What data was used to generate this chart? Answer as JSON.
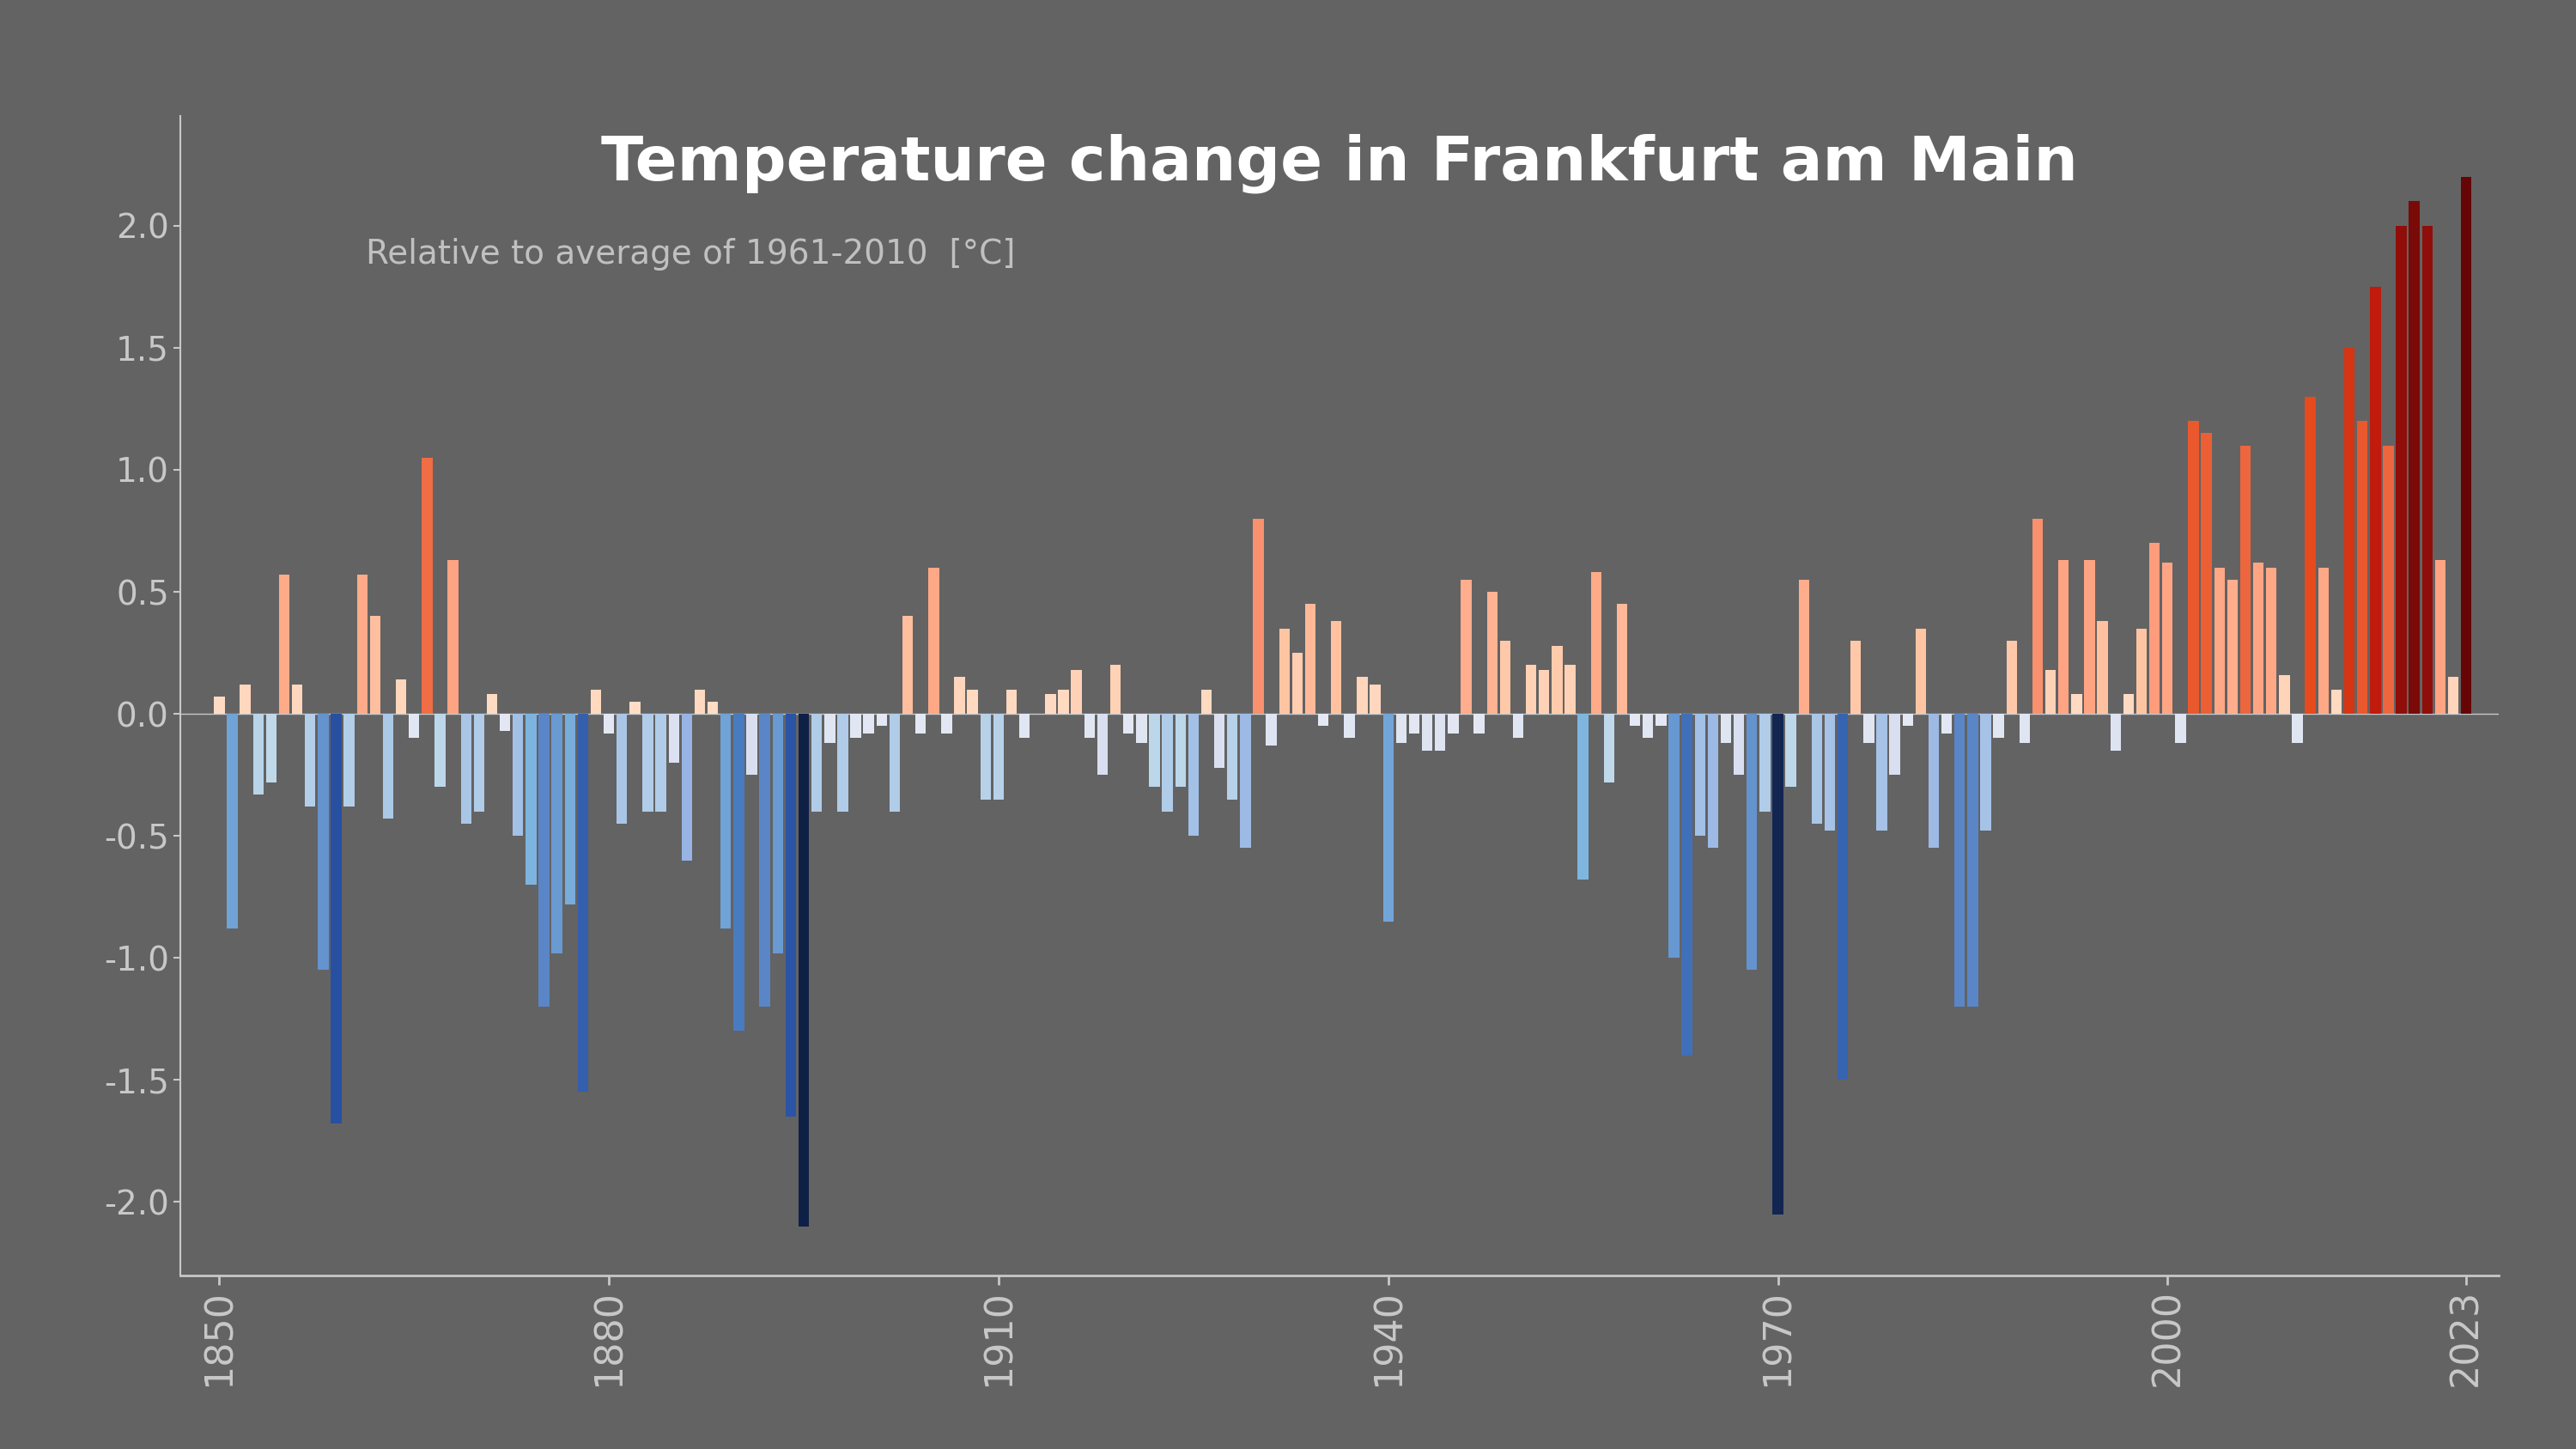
{
  "title": "Temperature change in Frankfurt am Main",
  "subtitle": "Relative to average of 1961-2010  [°C]",
  "background_color": "#636363",
  "axis_color": "#c8c8c8",
  "title_color": "#ffffff",
  "subtitle_color": "#c0c0c0",
  "ylim": [
    -2.3,
    2.45
  ],
  "yticks": [
    -2.0,
    -1.5,
    -1.0,
    -0.5,
    0.0,
    0.5,
    1.0,
    1.5,
    2.0
  ],
  "xtick_years": [
    1850,
    1880,
    1910,
    1940,
    1970,
    2000,
    2023
  ],
  "years": [
    1850,
    1851,
    1852,
    1853,
    1854,
    1855,
    1856,
    1857,
    1858,
    1859,
    1860,
    1861,
    1862,
    1863,
    1864,
    1865,
    1866,
    1867,
    1868,
    1869,
    1870,
    1871,
    1872,
    1873,
    1874,
    1875,
    1876,
    1877,
    1878,
    1879,
    1880,
    1881,
    1882,
    1883,
    1884,
    1885,
    1886,
    1887,
    1888,
    1889,
    1890,
    1891,
    1892,
    1893,
    1894,
    1895,
    1896,
    1897,
    1898,
    1899,
    1900,
    1901,
    1902,
    1903,
    1904,
    1905,
    1906,
    1907,
    1908,
    1909,
    1910,
    1911,
    1912,
    1913,
    1914,
    1915,
    1916,
    1917,
    1918,
    1919,
    1920,
    1921,
    1922,
    1923,
    1924,
    1925,
    1926,
    1927,
    1928,
    1929,
    1930,
    1931,
    1932,
    1933,
    1934,
    1935,
    1936,
    1937,
    1938,
    1939,
    1940,
    1941,
    1942,
    1943,
    1944,
    1945,
    1946,
    1947,
    1948,
    1949,
    1950,
    1951,
    1952,
    1953,
    1954,
    1955,
    1956,
    1957,
    1958,
    1959,
    1960,
    1961,
    1962,
    1963,
    1964,
    1965,
    1966,
    1967,
    1968,
    1969,
    1970,
    1971,
    1972,
    1973,
    1974,
    1975,
    1976,
    1977,
    1978,
    1979,
    1980,
    1981,
    1982,
    1983,
    1984,
    1985,
    1986,
    1987,
    1988,
    1989,
    1990,
    1991,
    1992,
    1993,
    1994,
    1995,
    1996,
    1997,
    1998,
    1999,
    2000,
    2001,
    2002,
    2003,
    2004,
    2005,
    2006,
    2007,
    2008,
    2009,
    2010,
    2011,
    2012,
    2013,
    2014,
    2015,
    2016,
    2017,
    2018,
    2019,
    2020,
    2021,
    2022,
    2023
  ],
  "values": [
    0.07,
    -0.88,
    0.12,
    -0.33,
    -0.28,
    0.57,
    0.12,
    -0.38,
    -1.05,
    -1.68,
    -0.38,
    0.57,
    0.4,
    -0.43,
    0.14,
    -0.1,
    1.05,
    -0.3,
    0.63,
    -0.45,
    -0.4,
    0.08,
    -0.07,
    -0.5,
    -0.7,
    -1.2,
    -0.98,
    -0.78,
    -1.55,
    0.1,
    -0.08,
    -0.45,
    0.05,
    -0.4,
    -0.4,
    -0.2,
    -0.6,
    0.1,
    0.05,
    -0.88,
    -1.3,
    -0.25,
    -1.2,
    -0.98,
    -1.65,
    -2.1,
    -0.4,
    -0.12,
    -0.4,
    -0.1,
    -0.08,
    -0.05,
    -0.4,
    0.4,
    -0.08,
    0.6,
    -0.08,
    0.15,
    0.1,
    -0.35,
    -0.35,
    0.1,
    -0.1,
    0.0,
    0.08,
    0.1,
    0.18,
    -0.1,
    -0.25,
    0.2,
    -0.08,
    -0.12,
    -0.3,
    -0.4,
    -0.3,
    -0.5,
    0.1,
    -0.22,
    -0.35,
    -0.55,
    0.8,
    -0.13,
    0.35,
    0.25,
    0.45,
    -0.05,
    0.38,
    -0.1,
    0.15,
    0.12,
    -0.85,
    -0.12,
    -0.08,
    -0.15,
    -0.15,
    -0.08,
    0.55,
    -0.08,
    0.5,
    0.3,
    -0.1,
    0.2,
    0.18,
    0.28,
    0.2,
    -0.68,
    0.58,
    -0.28,
    0.45,
    -0.05,
    -0.1,
    -0.05,
    -1.0,
    -1.4,
    -0.5,
    -0.55,
    -0.12,
    -0.25,
    -1.05,
    -0.4,
    -2.05,
    -0.3,
    0.55,
    -0.45,
    -0.48,
    -1.5,
    0.3,
    -0.12,
    -0.48,
    -0.25,
    -0.05,
    0.35,
    -0.55,
    -0.08,
    -1.2,
    -1.2,
    -0.48,
    -0.1,
    0.3,
    -0.12,
    0.8,
    0.18,
    0.63,
    0.08,
    0.63,
    0.38,
    -0.15,
    0.08,
    0.35,
    0.7,
    0.62,
    -0.12,
    1.2,
    1.15,
    0.6,
    0.55,
    1.1,
    0.62,
    0.6,
    0.16,
    -0.12,
    1.3,
    0.6,
    0.1,
    1.5,
    1.2,
    1.75,
    1.1,
    2.0,
    2.1,
    2.0,
    0.63,
    0.15,
    2.2
  ]
}
